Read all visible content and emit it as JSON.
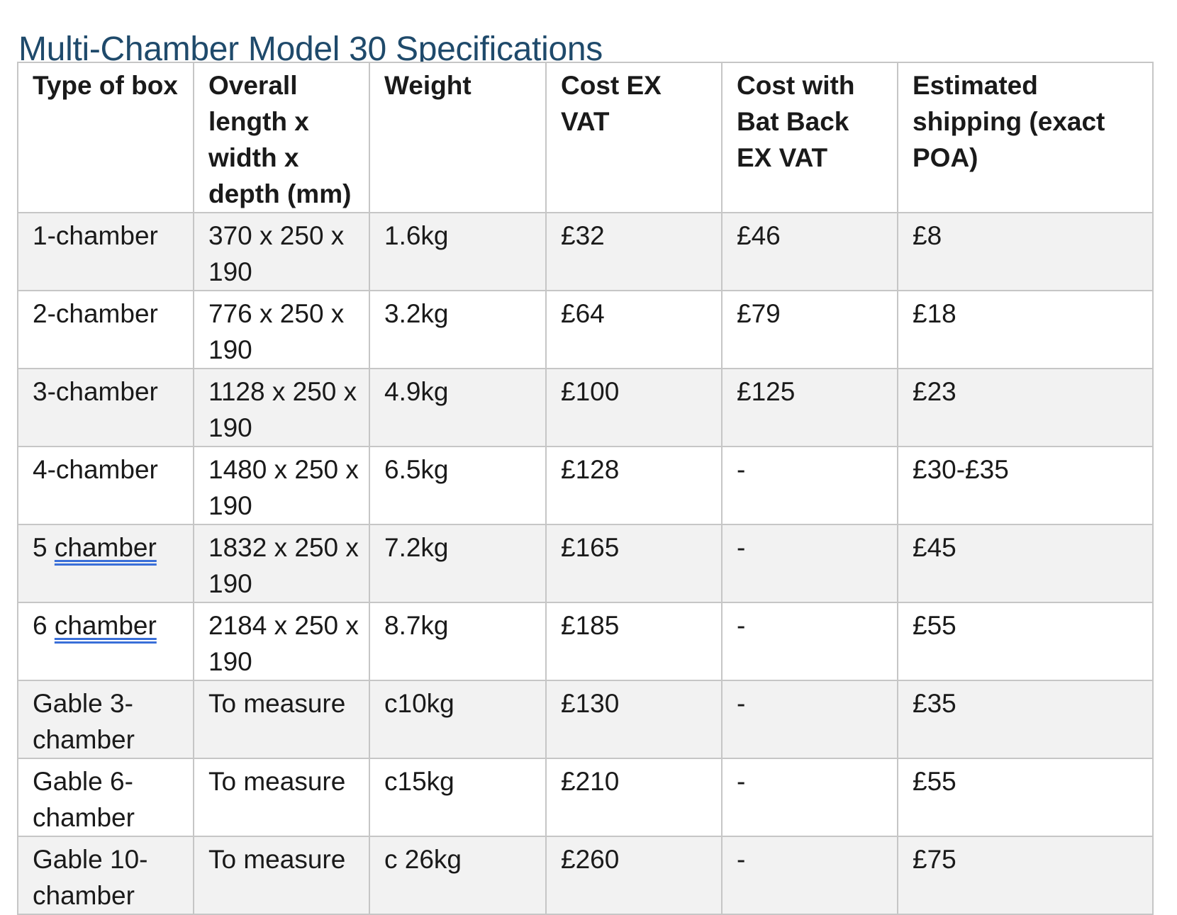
{
  "title": "Multi-Chamber Model 30 Specifications",
  "table": {
    "headers": [
      "Type of box",
      "Overall length x width x depth (mm)",
      "Weight",
      "Cost EX VAT",
      "Cost with Bat Back EX VAT",
      "Estimated shipping (exact POA)"
    ],
    "rows": [
      {
        "type_prefix": "",
        "type_text": "1-chamber",
        "dims": "370 x 250 x 190",
        "weight": "1.6kg",
        "cost": "£32",
        "cost_batback": "£46",
        "shipping": "£8"
      },
      {
        "type_prefix": "",
        "type_text": "2-chamber",
        "dims": "776 x 250 x 190",
        "weight": "3.2kg",
        "cost": "£64",
        "cost_batback": "£79",
        "shipping": "£18"
      },
      {
        "type_prefix": "",
        "type_text": "3-chamber",
        "dims": "1128 x 250 x 190",
        "weight": "4.9kg",
        "cost": "£100",
        "cost_batback": "£125",
        "shipping": "£23"
      },
      {
        "type_prefix": "",
        "type_text": "4-chamber",
        "dims": "1480 x 250 x 190",
        "weight": "6.5kg",
        "cost": "£128",
        "cost_batback": "-",
        "shipping": "£30-£35"
      },
      {
        "type_prefix": "5 ",
        "type_text": "chamber",
        "dims": "1832 x 250 x 190",
        "weight": "7.2kg",
        "cost": "£165",
        "cost_batback": "-",
        "shipping": "£45"
      },
      {
        "type_prefix": "6 ",
        "type_text": "chamber",
        "dims": "2184 x 250 x 190",
        "weight": "8.7kg",
        "cost": "£185",
        "cost_batback": "-",
        "shipping": "£55"
      },
      {
        "type_prefix": "",
        "type_text": "Gable 3-chamber",
        "dims": "To measure",
        "weight": "c10kg",
        "cost": "£130",
        "cost_batback": "-",
        "shipping": "£35"
      },
      {
        "type_prefix": "",
        "type_text": "Gable 6-chamber",
        "dims": "To measure",
        "weight": "c15kg",
        "cost": "£210",
        "cost_batback": "-",
        "shipping": "£55"
      },
      {
        "type_prefix": "",
        "type_text": "Gable 10-chamber",
        "dims": "To measure",
        "weight": "c 26kg",
        "cost": "£260",
        "cost_batback": "-",
        "shipping": "£75"
      }
    ]
  },
  "colors": {
    "title": "#1f4a6b",
    "row_shade": "#f2f2f2",
    "border": "#c6c6c6",
    "spellcheck_underline": "#3a6fd8"
  }
}
